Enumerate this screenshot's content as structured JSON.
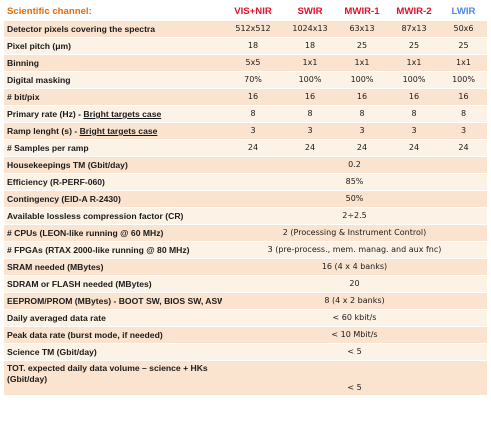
{
  "header": {
    "label": "Scientific channel:",
    "channels": [
      "VIS+NIR",
      "SWIR",
      "MWIR-1",
      "MWIR-2",
      "LWIR"
    ]
  },
  "channel_rows": [
    {
      "label": "Detector pixels covering the spectra",
      "values": [
        "512x512",
        "1024x13",
        "63x13",
        "87x13",
        "50x6"
      ]
    },
    {
      "label": "Pixel pitch (μm)",
      "values": [
        "18",
        "18",
        "25",
        "25",
        "25"
      ]
    },
    {
      "label": "Binning",
      "values": [
        "5x5",
        "1x1",
        "1x1",
        "1x1",
        "1x1"
      ]
    },
    {
      "label": "Digital masking",
      "values": [
        "70%",
        "100%",
        "100%",
        "100%",
        "100%"
      ]
    },
    {
      "label": "# bit/pix",
      "values": [
        "16",
        "16",
        "16",
        "16",
        "16"
      ]
    },
    {
      "label_main": "Primary rate (Hz) - ",
      "label_ul": "Bright targets case",
      "values": [
        "8",
        "8",
        "8",
        "8",
        "8"
      ]
    },
    {
      "label_main": "Ramp lenght (s)  - ",
      "label_ul": "Bright targets case",
      "values": [
        "3",
        "3",
        "3",
        "3",
        "3"
      ]
    },
    {
      "label": "# Samples per ramp",
      "values": [
        "24",
        "24",
        "24",
        "24",
        "24"
      ]
    }
  ],
  "span_rows": [
    {
      "label": "Housekeepings TM (Gbit/day)",
      "value": "0.2"
    },
    {
      "label": "Efficiency (R-PERF-060)",
      "value": "85%"
    },
    {
      "label": "Contingency (EID-A R-2430)",
      "value": "50%"
    },
    {
      "label": "Available lossless compression factor (CR)",
      "value": "2÷2.5"
    },
    {
      "label": "# CPUs (LEON-like running @ 60 MHz)",
      "value": "2 (Processing & Instrument Control)"
    },
    {
      "label": "# FPGAs (RTAX 2000-like running @ 80 MHz)",
      "value": "3 (pre-process., mem. manag. and aux fnc)"
    },
    {
      "label": "SRAM needed (MBytes)",
      "value": "16 (4 x 4 banks)"
    },
    {
      "label": "SDRAM or FLASH needed (MBytes)",
      "value": "20"
    },
    {
      "label": "EEPROM/PROM (MBytes) - BOOT SW, BIOS SW, ASW",
      "value": "8 (4 x 2 banks)"
    },
    {
      "label": "Daily averaged data rate",
      "value": "< 60 kbit/s"
    },
    {
      "label": "Peak data rate (burst mode, if needed)",
      "value": "< 10 Mbit/s"
    },
    {
      "label": "Science TM (Gbit/day)",
      "value": "< 5"
    },
    {
      "label": "TOT. expected daily data volume – science + HKs (Gbit/day)",
      "value": "< 5"
    }
  ]
}
